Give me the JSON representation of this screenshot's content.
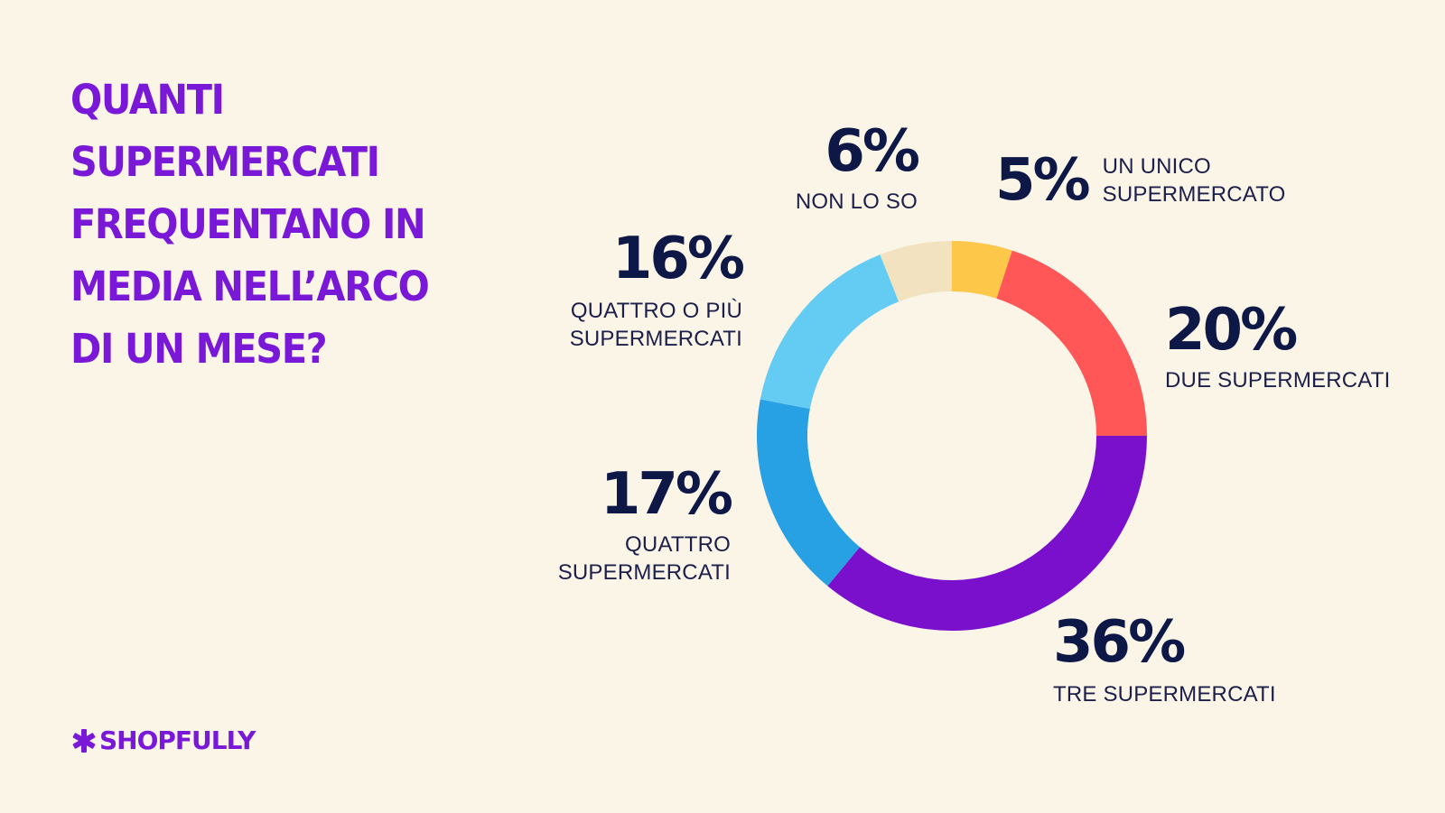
{
  "title": {
    "lines": [
      "QUANTI",
      "SUPERMERCATI",
      "FREQUENTANO IN",
      "MEDIA NELL’ARCO",
      "DI UN MESE?"
    ]
  },
  "chart_data": {
    "type": "pie",
    "style": "donut",
    "slices": [
      {
        "label": "UN UNICO SUPERMERCATO",
        "value": 5,
        "color": "#FDC84A",
        "display": "5%",
        "label_lines": [
          "UN UNICO",
          "SUPERMERCATO"
        ]
      },
      {
        "label": "DUE SUPERMERCATI",
        "value": 20,
        "color": "#FF5657",
        "display": "20%",
        "label_lines": [
          "DUE SUPERMERCATI"
        ]
      },
      {
        "label": "TRE SUPERMERCATI",
        "value": 36,
        "color": "#7A10CC",
        "display": "36%",
        "label_lines": [
          "TRE SUPERMERCATI"
        ]
      },
      {
        "label": "QUATTRO SUPERMERCATI",
        "value": 17,
        "color": "#28A0E4",
        "display": "17%",
        "label_lines": [
          "QUATTRO",
          "SUPERMERCATI"
        ]
      },
      {
        "label": "QUATTRO O PIÙ SUPERMERCATI",
        "value": 16,
        "color": "#64CCF2",
        "display": "16%",
        "label_lines": [
          "QUATTRO O PIÙ",
          "SUPERMERCATI"
        ]
      },
      {
        "label": "NON LO SO",
        "value": 6,
        "color": "#F2E2C0",
        "display": "6%",
        "label_lines": [
          "NON LO SO"
        ]
      }
    ]
  },
  "brand": {
    "name": "SHOPFULLY",
    "icon": "asterisk-icon",
    "color": "#7A18D8"
  }
}
